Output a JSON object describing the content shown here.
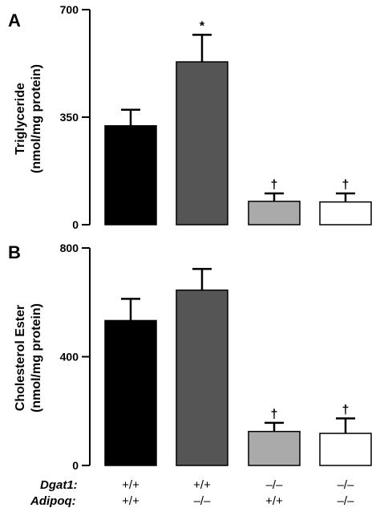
{
  "chart_data": [
    {
      "type": "bar",
      "panel_label": "A",
      "ylabel_line1": "Triglyceride",
      "ylabel_line2": "(nmol/mg protein)",
      "ylim": [
        0,
        700
      ],
      "yticks": [
        "0",
        "350",
        "700"
      ],
      "ytick_values": [
        0,
        350,
        700
      ],
      "values": [
        322,
        530,
        76,
        74
      ],
      "errors": [
        52,
        88,
        26,
        28
      ],
      "annotations": [
        "",
        "*",
        "†",
        "†"
      ],
      "colors": [
        "#000000",
        "#555555",
        "#aaaaaa",
        "#ffffff"
      ]
    },
    {
      "type": "bar",
      "panel_label": "B",
      "ylabel_line1": "Cholesterol Ester",
      "ylabel_line2": "(nmol/mg protein)",
      "ylim": [
        0,
        800
      ],
      "yticks": [
        "0",
        "400",
        "800"
      ],
      "ytick_values": [
        0,
        400,
        800
      ],
      "values": [
        533,
        645,
        125,
        118
      ],
      "errors": [
        80,
        78,
        32,
        55
      ],
      "annotations": [
        "",
        "",
        "†",
        "†"
      ],
      "colors": [
        "#000000",
        "#555555",
        "#aaaaaa",
        "#ffffff"
      ]
    }
  ],
  "genotypes": {
    "row1_label": "Dgat1:",
    "row2_label": "Adipoq:",
    "row1": [
      "+/+",
      "+/+",
      "–/–",
      "–/–"
    ],
    "row2": [
      "+/+",
      "–/–",
      "+/+",
      "–/–"
    ]
  }
}
